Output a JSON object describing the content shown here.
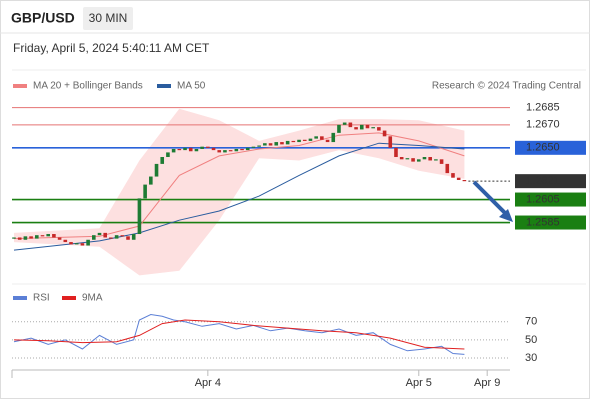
{
  "header": {
    "symbol": "GBP/USD",
    "interval": "30 MIN",
    "timestamp": "Friday, April 5, 2024 5:40:11 AM CET"
  },
  "chart_data": [
    {
      "type": "candlestick",
      "credit": "Research © 2024 Trading Central",
      "up_color": "#1e7b34",
      "down_color": "#c62828",
      "x": [
        0,
        1,
        2,
        3,
        4,
        5,
        6,
        7,
        8,
        9,
        10,
        11,
        12,
        13,
        14,
        15,
        16,
        17,
        18,
        19,
        20,
        21,
        22,
        23,
        24,
        25,
        26,
        27,
        28,
        29,
        30,
        31,
        32,
        33,
        34,
        35,
        36,
        37,
        38,
        39,
        40,
        41,
        42,
        43,
        44,
        45,
        46,
        47,
        48,
        49,
        50,
        51,
        52,
        53,
        54,
        55,
        56,
        57,
        58,
        59,
        60,
        61,
        62,
        63,
        64,
        65,
        66,
        67,
        68,
        69,
        70,
        71,
        72,
        73,
        74,
        75,
        76,
        77,
        78,
        79
      ],
      "closes": [
        1.2572,
        1.257,
        1.2573,
        1.2571,
        1.2574,
        1.2573,
        1.2575,
        1.2572,
        1.257,
        1.2568,
        1.2566,
        1.2567,
        1.2565,
        1.257,
        1.2574,
        1.2576,
        1.2572,
        1.2571,
        1.2574,
        1.2573,
        1.257,
        1.2575,
        1.2606,
        1.2618,
        1.2625,
        1.2636,
        1.2642,
        1.2646,
        1.2649,
        1.2648,
        1.265,
        1.2647,
        1.2649,
        1.2651,
        1.265,
        1.2648,
        1.2646,
        1.2648,
        1.2647,
        1.2649,
        1.2648,
        1.265,
        1.2651,
        1.2652,
        1.2654,
        1.2652,
        1.2655,
        1.2653,
        1.2656,
        1.2655,
        1.2657,
        1.2656,
        1.2658,
        1.266,
        1.2657,
        1.2655,
        1.2663,
        1.267,
        1.2672,
        1.2668,
        1.2666,
        1.267,
        1.2667,
        1.2668,
        1.2665,
        1.266,
        1.265,
        1.2642,
        1.264,
        1.2641,
        1.2638,
        1.264,
        1.2642,
        1.2639,
        1.264,
        1.2636,
        1.2628,
        1.2624,
        1.2622,
        1.2621
      ],
      "series": [
        {
          "name": "MA 20 + Bollinger Bands",
          "color": "#f08080",
          "band_color": "#fde0e0",
          "x": [
            0,
            15,
            22,
            29,
            36,
            43,
            50,
            57,
            64,
            71,
            79
          ],
          "values": [
            1.2571,
            1.2573,
            1.2582,
            1.2626,
            1.2643,
            1.2649,
            1.2652,
            1.2661,
            1.2663,
            1.2656,
            1.2643
          ],
          "upper": [
            1.2576,
            1.258,
            1.2639,
            1.2684,
            1.2674,
            1.2656,
            1.2665,
            1.2675,
            1.2675,
            1.2674,
            1.2665
          ],
          "lower": [
            1.2568,
            1.2564,
            1.2539,
            1.2543,
            1.2587,
            1.2641,
            1.2639,
            1.2648,
            1.2641,
            1.263,
            1.2623
          ]
        },
        {
          "name": "MA 50",
          "color": "#2a5c9e",
          "x": [
            0,
            15,
            22,
            29,
            36,
            43,
            50,
            57,
            64,
            71,
            79
          ],
          "values": [
            1.2561,
            1.2569,
            1.2576,
            1.2587,
            1.2595,
            1.2608,
            1.2626,
            1.2643,
            1.2654,
            1.2652,
            1.2649
          ]
        }
      ],
      "levels": [
        {
          "value": 1.2685,
          "label": "1.2685",
          "color": "#e57373",
          "text_color": "#d32f2f",
          "box": false
        },
        {
          "value": 1.267,
          "label": "1.2670",
          "color": "#e57373",
          "text_color": "#d32f2f",
          "box": false
        },
        {
          "value": 1.265,
          "label": "1.2650",
          "color": "#2962d9",
          "text_color": "#ffffff",
          "box": true
        },
        {
          "value": 1.2621,
          "label": "1.2621",
          "color": "#333333",
          "text_color": "#ffffff",
          "box": true,
          "dotted": true
        },
        {
          "value": 1.2605,
          "label": "1.2605",
          "color": "#1a7f12",
          "text_color": "#ffffff",
          "box": true
        },
        {
          "value": 1.2585,
          "label": "1.2585",
          "color": "#1a7f12",
          "text_color": "#ffffff",
          "box": true
        }
      ],
      "xlim": [
        -0.35,
        87
      ],
      "ylim": [
        1.2535,
        1.2709
      ]
    },
    {
      "type": "line",
      "ylim": [
        19,
        83
      ],
      "yticks": [
        70,
        50,
        30
      ],
      "xlim": [
        -0.35,
        87
      ],
      "xticks": [
        {
          "value": 34,
          "label": "Apr 4"
        },
        {
          "value": 71,
          "label": "Apr 5"
        },
        {
          "value": 83,
          "label": "Apr 9"
        }
      ],
      "series": [
        {
          "name": "RSI",
          "color": "#5b7fd6",
          "x": [
            0,
            3,
            6,
            9,
            12,
            15,
            18,
            21,
            22,
            24,
            26,
            28,
            30,
            33,
            36,
            39,
            42,
            45,
            48,
            51,
            54,
            57,
            60,
            63,
            66,
            69,
            72,
            75,
            77,
            79
          ],
          "values": [
            48,
            52,
            45,
            50,
            40,
            55,
            45,
            50,
            72,
            78,
            76,
            72,
            70,
            65,
            68,
            62,
            66,
            60,
            63,
            60,
            58,
            62,
            55,
            58,
            45,
            38,
            40,
            43,
            35,
            34
          ]
        },
        {
          "name": "9MA",
          "color": "#e02020",
          "x": [
            0,
            6,
            12,
            18,
            22,
            26,
            30,
            36,
            42,
            48,
            54,
            60,
            66,
            72,
            79
          ],
          "values": [
            50,
            49,
            47,
            48,
            55,
            68,
            72,
            70,
            66,
            63,
            60,
            58,
            52,
            42,
            40
          ]
        }
      ]
    }
  ]
}
